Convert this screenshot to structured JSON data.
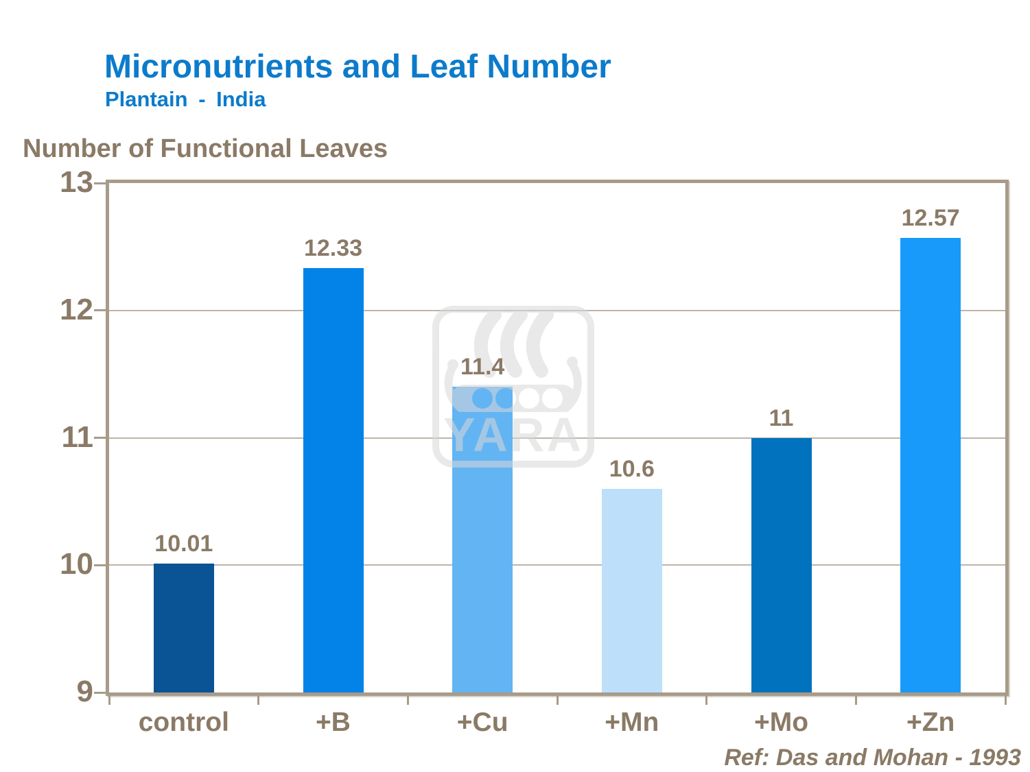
{
  "header": {
    "title": "Micronutrients and Leaf Number",
    "subtitle": "Plantain - India",
    "title_color": "#0C7BCB"
  },
  "chart_data": {
    "type": "bar",
    "title": "Micronutrients and Leaf Number",
    "subtitle": "Plantain - India",
    "ylabel": "Number of Functional Leaves",
    "xlabel": "",
    "categories": [
      "control",
      "+B",
      "+Cu",
      "+Mn",
      "+Mo",
      "+Zn"
    ],
    "values": [
      10.01,
      12.33,
      11.4,
      10.6,
      11,
      12.57
    ],
    "value_labels": [
      "10.01",
      "12.33",
      "11.4",
      "10.6",
      "11",
      "12.57"
    ],
    "bar_colors": [
      "#0A5394",
      "#0383E8",
      "#63B4F3",
      "#BDDFF9",
      "#0072BE",
      "#179AF9"
    ],
    "ylim": [
      9,
      13
    ],
    "yticks": [
      13,
      12,
      11,
      10,
      9
    ],
    "grid": true,
    "legend": false
  },
  "watermark": {
    "label": "YARA"
  },
  "footer": {
    "reference": "Ref: Das and Mohan - 1993"
  },
  "colors": {
    "text_taupe": "#8A7A66",
    "axis_frame": "#A79B8B",
    "gridline": "#BDB4A9",
    "background": "#FFFFFF"
  }
}
